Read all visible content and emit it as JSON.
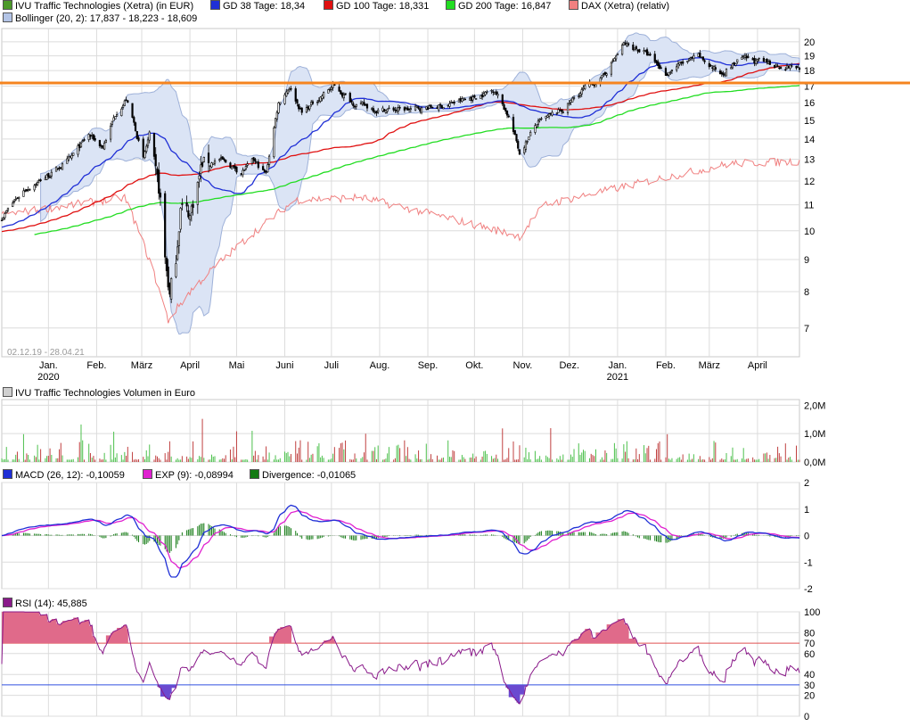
{
  "colors": {
    "candle_up": "#ffffff",
    "candle_down": "#000000",
    "gd38": "#1f2fd6",
    "gd100": "#e01010",
    "gd200": "#22dd22",
    "dax": "#f08080",
    "bollinger_fill": "#dbe4f5",
    "bollinger_edge": "#9eb1d9",
    "resistance": "#f5841f",
    "macd": "#1f2fd6",
    "exp": "#e020d0",
    "divergence": "#137a13",
    "rsi": "#8a1a8a",
    "rsi_70": "#e05050",
    "rsi_30": "#3050e0",
    "grid": "#dcdcdc"
  },
  "legends": {
    "price_1": [
      {
        "label": "IVU Traffic Technologies (Xetra) (in EUR)",
        "color": "#4c9a2a"
      },
      {
        "label": "GD 38 Tage: 18,34",
        "color": "#1f2fd6"
      },
      {
        "label": "GD 100 Tage: 18,331",
        "color": "#e01010"
      },
      {
        "label": "GD 200 Tage: 16,847",
        "color": "#22dd22"
      },
      {
        "label": "DAX (Xetra) (relativ)",
        "color": "#f08080"
      }
    ],
    "price_2": [
      {
        "label": "Bollinger (20, 2): 17,837 - 18,223 - 18,609",
        "color": "#b3c4e6"
      }
    ],
    "volume": [
      {
        "label": "IVU Traffic Technologies Volumen in Euro",
        "color": "#d0d0d0"
      }
    ],
    "macd": [
      {
        "label": "MACD (26, 12): -0,10059",
        "color": "#1f2fd6"
      },
      {
        "label": "EXP (9): -0,08994",
        "color": "#e020d0"
      },
      {
        "label": "Divergence: -0,01065",
        "color": "#137a13"
      }
    ],
    "rsi": [
      {
        "label": "RSI (14): 45,885",
        "color": "#8a1a8a"
      }
    ]
  },
  "date_range": "02.12.19 - 28.04.21",
  "chart_data": [
    {
      "type": "candlestick",
      "panel": "price",
      "yscale": "log",
      "ylim": [
        6.3,
        21
      ],
      "yticks": [
        7,
        8,
        9,
        10,
        11,
        12,
        13,
        14,
        15,
        16,
        17,
        18,
        19,
        20
      ],
      "x_labels": [
        "Jan.",
        "Feb.",
        "März",
        "April",
        "Mai",
        "Juni",
        "Juli",
        "Aug.",
        "Sep.",
        "Okt.",
        "Nov.",
        "Dez.",
        "Jan.",
        "Feb.",
        "März",
        "April"
      ],
      "year_labels": [
        {
          "label": "2020",
          "under": "Jan."
        },
        {
          "label": "2021",
          "under": "Jan."
        }
      ],
      "resistance_level": 17.2,
      "close_anchors": [
        [
          "2019-12-02",
          10.5
        ],
        [
          "2019-12-16",
          11.6
        ],
        [
          "2020-01-02",
          12.3
        ],
        [
          "2020-01-15",
          13.0
        ],
        [
          "2020-01-27",
          14.2
        ],
        [
          "2020-02-05",
          13.6
        ],
        [
          "2020-02-14",
          15.5
        ],
        [
          "2020-02-20",
          16.2
        ],
        [
          "2020-02-25",
          14.8
        ],
        [
          "2020-03-02",
          13.0
        ],
        [
          "2020-03-06",
          14.2
        ],
        [
          "2020-03-10",
          12.2
        ],
        [
          "2020-03-13",
          11.2
        ],
        [
          "2020-03-16",
          9.0
        ],
        [
          "2020-03-19",
          7.9
        ],
        [
          "2020-03-23",
          9.0
        ],
        [
          "2020-03-26",
          11.0
        ],
        [
          "2020-04-01",
          10.6
        ],
        [
          "2020-04-09",
          12.8
        ],
        [
          "2020-04-20",
          13.0
        ],
        [
          "2020-05-04",
          12.4
        ],
        [
          "2020-05-12",
          12.9
        ],
        [
          "2020-05-20",
          12.3
        ],
        [
          "2020-05-28",
          16.0
        ],
        [
          "2020-06-04",
          17.0
        ],
        [
          "2020-06-12",
          15.4
        ],
        [
          "2020-06-22",
          16.2
        ],
        [
          "2020-07-02",
          17.0
        ],
        [
          "2020-07-15",
          16.0
        ],
        [
          "2020-07-30",
          15.6
        ],
        [
          "2020-08-20",
          15.6
        ],
        [
          "2020-09-10",
          15.8
        ],
        [
          "2020-09-30",
          16.3
        ],
        [
          "2020-10-14",
          16.8
        ],
        [
          "2020-10-23",
          15.2
        ],
        [
          "2020-10-30",
          13.3
        ],
        [
          "2020-11-10",
          14.8
        ],
        [
          "2020-11-27",
          15.6
        ],
        [
          "2020-12-10",
          16.8
        ],
        [
          "2020-12-22",
          17.5
        ],
        [
          "2021-01-05",
          19.8
        ],
        [
          "2021-01-18",
          19.3
        ],
        [
          "2021-02-01",
          17.8
        ],
        [
          "2021-02-08",
          18.3
        ],
        [
          "2021-02-22",
          18.9
        ],
        [
          "2021-03-08",
          17.8
        ],
        [
          "2021-03-22",
          18.8
        ],
        [
          "2021-04-06",
          18.5
        ],
        [
          "2021-04-28",
          18.2
        ]
      ],
      "series_current_values": {
        "GD 38 Tage": 18.34,
        "GD 100 Tage": 18.331,
        "GD 200 Tage": 16.847,
        "Bollinger": [
          17.837,
          18.223,
          18.609
        ]
      }
    },
    {
      "type": "bar",
      "panel": "volume",
      "ylim": [
        0,
        2200000
      ],
      "yticks": [
        "0,0M",
        "1,0M",
        "2,0M"
      ],
      "ytick_values": [
        0,
        1000000,
        2000000
      ]
    },
    {
      "type": "line",
      "panel": "macd",
      "ylim": [
        -2,
        2
      ],
      "yticks": [
        -2,
        -1,
        0,
        1,
        2
      ],
      "current": {
        "MACD": -0.10059,
        "EXP": -0.08994,
        "Divergence": -0.01065
      }
    },
    {
      "type": "line",
      "panel": "rsi",
      "ylim": [
        0,
        100
      ],
      "yticks": [
        0,
        20,
        30,
        40,
        60,
        70,
        80,
        100
      ],
      "overbought": 70,
      "oversold": 30,
      "current": 45.885
    }
  ]
}
